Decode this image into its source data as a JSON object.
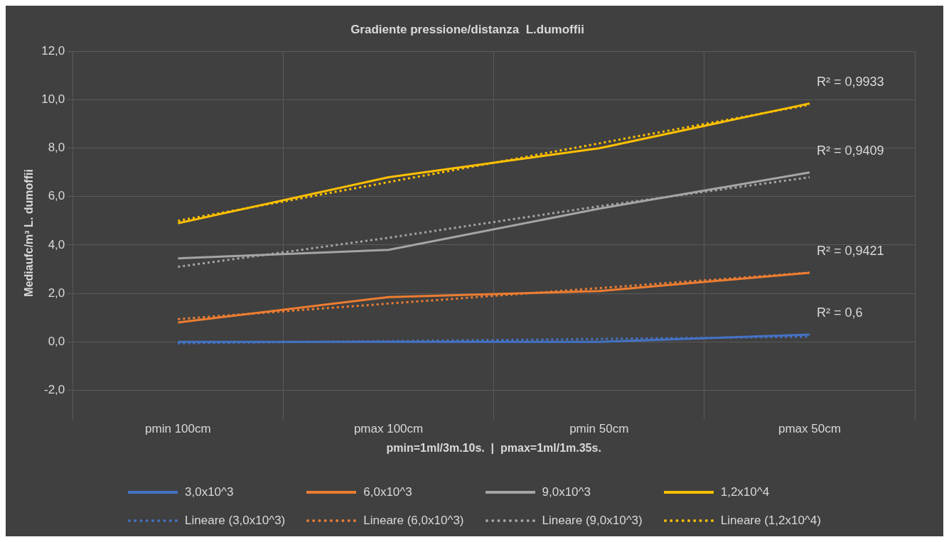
{
  "chart_data": {
    "type": "line",
    "title": "Gradiente pressione/distanza  L.dumoffii",
    "xlabel": "pmin=1ml/3m.10s.  |  pmax=1ml/1m.35s.",
    "ylabel": "Mediaufc/m³ L. dumoffii",
    "categories": [
      "pmin 100cm",
      "pmax 100cm",
      "pmin 50cm",
      "pmax 50cm"
    ],
    "series": [
      {
        "name": "3,0x10^3",
        "color": "#4472c4",
        "values": [
          0,
          0,
          0,
          0.3
        ]
      },
      {
        "name": "6,0x10^3",
        "color": "#ed7d31",
        "values": [
          0.8,
          1.85,
          2.1,
          2.85
        ]
      },
      {
        "name": "9,0x10^3",
        "color": "#a5a5a5",
        "values": [
          3.45,
          3.8,
          5.5,
          7.0
        ]
      },
      {
        "name": "1,2x10^4",
        "color": "#ffc000",
        "values": [
          4.9,
          6.8,
          8.0,
          9.85
        ]
      },
      {
        "name": "Lineare (3,0x10^3)",
        "color": "#4472c4",
        "line_style": "dotted",
        "values": [
          -0.06,
          0.03,
          0.12,
          0.21
        ]
      },
      {
        "name": "Lineare (6,0x10^3)",
        "color": "#ed7d31",
        "line_style": "dotted",
        "values": [
          0.94,
          1.58,
          2.22,
          2.86
        ]
      },
      {
        "name": "Lineare (9,0x10^3)",
        "color": "#a5a5a5",
        "line_style": "dotted",
        "values": [
          3.1,
          4.3,
          5.6,
          6.8
        ]
      },
      {
        "name": "Lineare (1,2x10^4)",
        "color": "#ffc000",
        "line_style": "dotted",
        "values": [
          5.0,
          6.6,
          8.2,
          9.8
        ]
      }
    ],
    "ylim": [
      -3,
      12
    ],
    "yticks": [
      {
        "value": -2,
        "label": "-2,0"
      },
      {
        "value": 0,
        "label": "0,0"
      },
      {
        "value": 2,
        "label": "2,0"
      },
      {
        "value": 4,
        "label": "4,0"
      },
      {
        "value": 6,
        "label": "6,0"
      },
      {
        "value": 8,
        "label": "8,0"
      },
      {
        "value": 10,
        "label": "10,0"
      },
      {
        "value": 12,
        "label": "12,0"
      }
    ],
    "grid": true,
    "legend": "bottom",
    "marker": "none",
    "line_style": "solid",
    "annotations": [
      "R² = 0,6",
      "R² = 0,9421",
      "R² = 0,9409",
      "R² = 0,9933"
    ]
  }
}
